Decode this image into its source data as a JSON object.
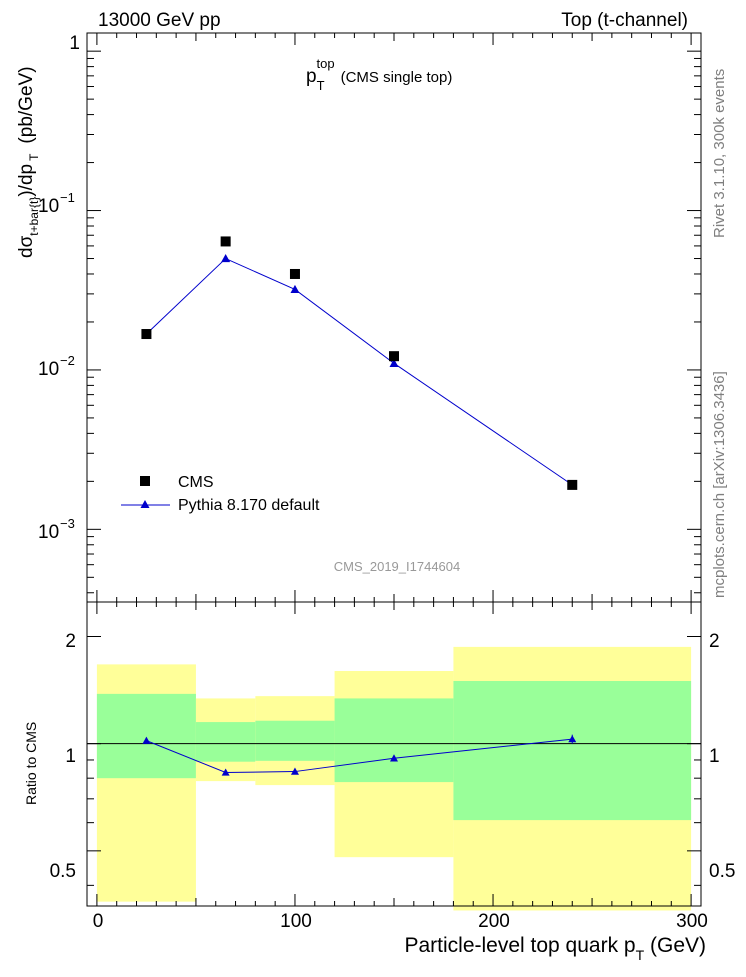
{
  "header": {
    "left": "13000 GeV pp",
    "right": "Top (t-channel)"
  },
  "side": {
    "rivet": "Rivet 3.1.10,  300k events",
    "mcplots": "mcplots.cern.ch [arXiv:1306.3436]"
  },
  "main": {
    "title_sym": "p",
    "title_sub": "T",
    "title_sup": "top",
    "title_rest": "(CMS single top)",
    "ylabel": {
      "pre": "dσ",
      "sub1": "t+bar{t}",
      "mid": ")/dp",
      "sub2": "T",
      "unit": "(pb/GeV)"
    },
    "watermark": "CMS_2019_I1744604",
    "yticks": {
      "one": "1",
      "ten": "10",
      "e1": "−1",
      "e2": "−2",
      "e3": "−3"
    }
  },
  "legend": {
    "data_label": "CMS",
    "mc_label": "Pythia 8.170 default"
  },
  "ratio": {
    "ylabel": "Ratio to CMS",
    "yticks": [
      "0.5",
      "1",
      "2"
    ]
  },
  "xaxis": {
    "ticks": [
      "0",
      "100",
      "200",
      "300"
    ],
    "label_main": "Particle-level top quark p",
    "label_sub": "T",
    "label_unit": " (GeV)"
  },
  "chart_data": {
    "type": "scatter",
    "x_bins": [
      [
        0,
        50
      ],
      [
        50,
        80
      ],
      [
        80,
        120
      ],
      [
        120,
        180
      ],
      [
        180,
        300
      ]
    ],
    "x": [
      25,
      65,
      100,
      150,
      240
    ],
    "xlim": [
      -5,
      305
    ],
    "main_ylim": [
      0.00035,
      1.3
    ],
    "main_yscale": "log",
    "ratio_ylim": [
      0.35,
      2.5
    ],
    "ratio_yscale": "log",
    "series": [
      {
        "name": "CMS",
        "marker": "square",
        "color": "#000000",
        "values": [
          0.0168,
          0.064,
          0.04,
          0.0122,
          0.0019
        ]
      },
      {
        "name": "Pythia 8.170 default",
        "marker": "triangle",
        "color": "#0000cc",
        "values": [
          0.0168,
          0.05,
          0.032,
          0.011,
          0.0019
        ]
      }
    ],
    "ratio": [
      1.02,
      0.83,
      0.835,
      0.91,
      1.03
    ],
    "ratio_err": [
      0.02,
      0.015,
      0.015,
      0.015,
      0.03
    ],
    "band_inner": [
      [
        0.8,
        1.38
      ],
      [
        0.89,
        1.15
      ],
      [
        0.895,
        1.16
      ],
      [
        0.78,
        1.34
      ],
      [
        0.61,
        1.5
      ]
    ],
    "band_outer": [
      [
        0.36,
        1.67
      ],
      [
        0.785,
        1.34
      ],
      [
        0.765,
        1.36
      ],
      [
        0.48,
        1.6
      ],
      [
        0.34,
        1.87
      ]
    ],
    "colors": {
      "inner": "#99ff99",
      "outer": "#ffff99",
      "mc": "#0000cc"
    },
    "legend_position": "bottom-left"
  }
}
